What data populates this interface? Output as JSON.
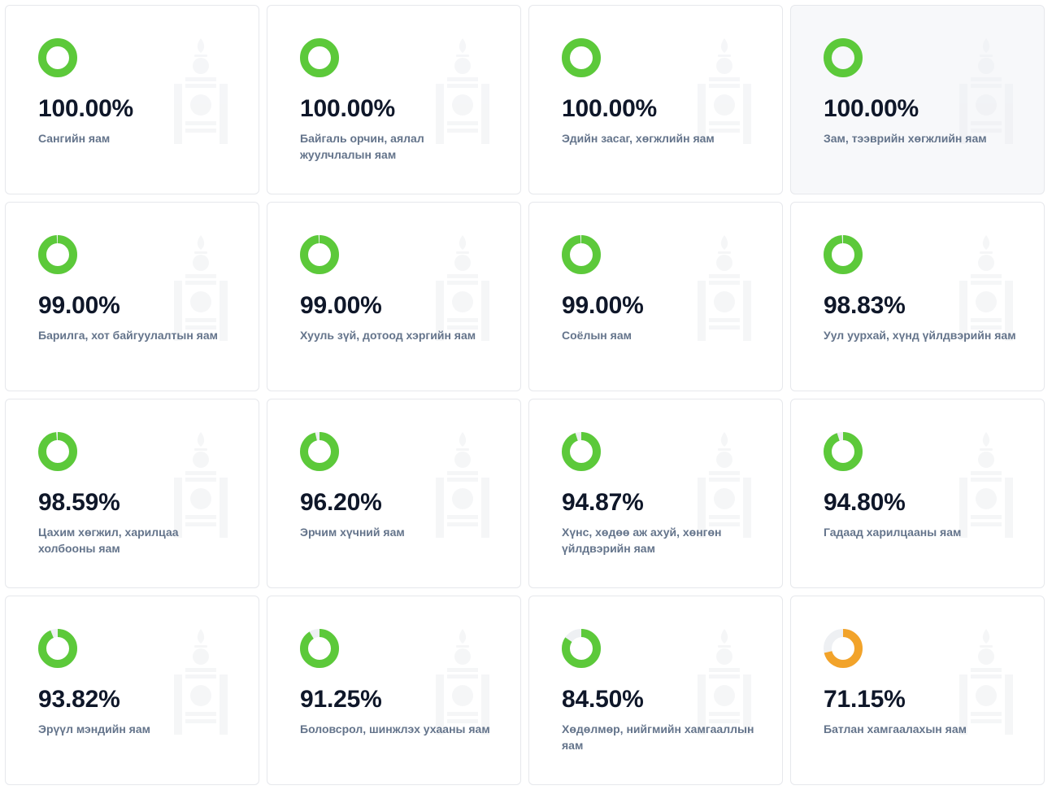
{
  "colors": {
    "green": "#5cc93a",
    "orange": "#f2a32a",
    "track": "#eef0f3"
  },
  "cards": [
    {
      "percent": "100.00%",
      "value": 100.0,
      "name": "Сангийн яам"
    },
    {
      "percent": "100.00%",
      "value": 100.0,
      "name": "Байгаль орчин, аялал жуулчлалын яам"
    },
    {
      "percent": "100.00%",
      "value": 100.0,
      "name": "Эдийн засаг, хөгжлийн яам"
    },
    {
      "percent": "100.00%",
      "value": 100.0,
      "name": "Зам, тээврийн хөгжлийн яам"
    },
    {
      "percent": "99.00%",
      "value": 99.0,
      "name": "Барилга, хот байгуулалтын яам"
    },
    {
      "percent": "99.00%",
      "value": 99.0,
      "name": "Хууль зүй, дотоод хэргийн яам"
    },
    {
      "percent": "99.00%",
      "value": 99.0,
      "name": "Соёлын яам"
    },
    {
      "percent": "98.83%",
      "value": 98.83,
      "name": "Уул уурхай, хүнд үйлдвэрийн яам"
    },
    {
      "percent": "98.59%",
      "value": 98.59,
      "name": "Цахим хөгжил, харилцаа холбооны яам"
    },
    {
      "percent": "96.20%",
      "value": 96.2,
      "name": "Эрчим хүчний яам"
    },
    {
      "percent": "94.87%",
      "value": 94.87,
      "name": "Хүнс, хөдөө аж ахуй, хөнгөн үйлдвэрийн яам"
    },
    {
      "percent": "94.80%",
      "value": 94.8,
      "name": "Гадаад харилцааны яам"
    },
    {
      "percent": "93.82%",
      "value": 93.82,
      "name": "Эрүүл мэндийн яам"
    },
    {
      "percent": "91.25%",
      "value": 91.25,
      "name": "Боловсрол, шинжлэх ухааны яам"
    },
    {
      "percent": "84.50%",
      "value": 84.5,
      "name": "Хөдөлмөр, нийгмийн хамгааллын яам"
    },
    {
      "percent": "71.15%",
      "value": 71.15,
      "name": "Батлан хамгаалахын яам"
    }
  ]
}
